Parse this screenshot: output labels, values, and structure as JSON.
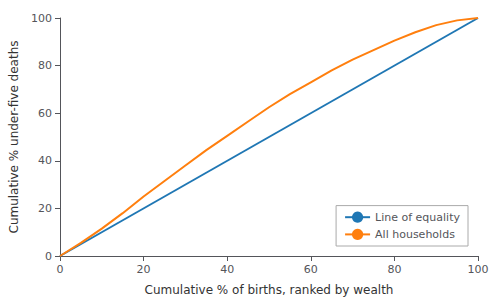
{
  "chart_data": {
    "type": "line",
    "xlabel": "Cumulative % of births, ranked by wealth",
    "ylabel": "Cumulative % under-five deaths",
    "series": [
      {
        "name": "Line of equality",
        "color": "#1f77b4",
        "x": [
          0,
          100
        ],
        "values": [
          0,
          100
        ]
      },
      {
        "name": "All households",
        "color": "#ff7f0e",
        "x": [
          0,
          5,
          10,
          15,
          20,
          25,
          30,
          35,
          40,
          45,
          50,
          55,
          60,
          65,
          70,
          75,
          80,
          85,
          90,
          95,
          100
        ],
        "values": [
          0,
          5.5,
          11.5,
          18.0,
          25.0,
          31.5,
          38.0,
          44.5,
          50.5,
          56.5,
          62.5,
          68.0,
          73.0,
          78.0,
          82.5,
          86.5,
          90.5,
          94.0,
          97.0,
          99.0,
          100
        ]
      }
    ],
    "xlim": [
      0,
      100
    ],
    "ylim": [
      0,
      100
    ],
    "xticks": [
      0,
      20,
      40,
      60,
      80,
      100
    ],
    "yticks": [
      0,
      20,
      40,
      60,
      80,
      100
    ],
    "legend": "lower right",
    "grid": false
  }
}
